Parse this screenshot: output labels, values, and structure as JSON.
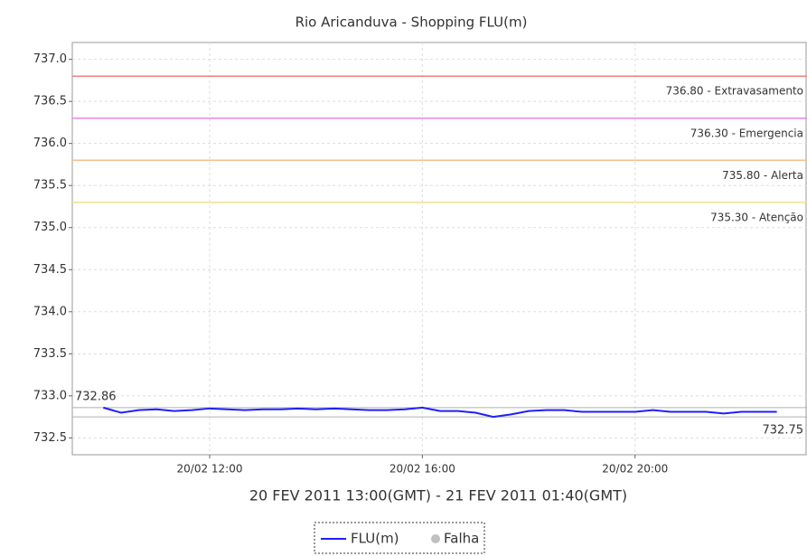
{
  "chart_data": {
    "type": "line",
    "title": "Rio Aricanduva - Shopping FLU(m)",
    "x_label": "20 FEV 2011 13:00(GMT) - 21 FEV 2011 01:40(GMT)",
    "x": [
      "20/02 10:00",
      "20/02 10:20",
      "20/02 10:40",
      "20/02 11:00",
      "20/02 11:20",
      "20/02 11:40",
      "20/02 12:00",
      "20/02 12:20",
      "20/02 12:40",
      "20/02 13:00",
      "20/02 13:20",
      "20/02 13:40",
      "20/02 14:00",
      "20/02 14:20",
      "20/02 14:40",
      "20/02 15:00",
      "20/02 15:20",
      "20/02 15:40",
      "20/02 16:00",
      "20/02 16:20",
      "20/02 16:40",
      "20/02 17:00",
      "20/02 17:20",
      "20/02 17:40",
      "20/02 18:00",
      "20/02 18:20",
      "20/02 18:40",
      "20/02 19:00",
      "20/02 19:20",
      "20/02 19:40",
      "20/02 20:00",
      "20/02 20:20",
      "20/02 20:40",
      "20/02 21:00",
      "20/02 21:20",
      "20/02 21:40",
      "20/02 22:00",
      "20/02 22:20",
      "20/02 22:40"
    ],
    "series": [
      {
        "name": "FLU(m)",
        "color": "#1f1fff",
        "values": [
          732.86,
          732.8,
          732.83,
          732.84,
          732.82,
          732.83,
          732.85,
          732.84,
          732.83,
          732.84,
          732.84,
          732.85,
          732.84,
          732.85,
          732.84,
          732.83,
          732.83,
          732.84,
          732.86,
          732.82,
          732.82,
          732.8,
          732.75,
          732.78,
          732.82,
          732.83,
          732.83,
          732.81,
          732.81,
          732.81,
          732.81,
          732.83,
          732.81,
          732.81,
          732.81,
          732.79,
          732.81,
          732.81,
          732.81
        ]
      },
      {
        "name": "Falha",
        "color": "#c0c0c0",
        "values": [
          null,
          null,
          null,
          null,
          null,
          null,
          null,
          null,
          null,
          null,
          null,
          null,
          null,
          null,
          null,
          null,
          null,
          null,
          null,
          null,
          null,
          null,
          null,
          null,
          null,
          null,
          null,
          null,
          null,
          null,
          null,
          null,
          null,
          null,
          null,
          null,
          null,
          null,
          null
        ]
      }
    ],
    "xlim": [
      "20/02 09:25",
      "20/02 23:14"
    ],
    "xticks": [
      "20/02 12:00",
      "20/02 16:00",
      "20/02 20:00"
    ],
    "ylim": [
      732.3,
      737.2
    ],
    "yticks": [
      {
        "value": 732.5,
        "label": "732.5"
      },
      {
        "value": 733,
        "label": "733.0"
      },
      {
        "value": 733.5,
        "label": "733.5"
      },
      {
        "value": 734,
        "label": "734.0"
      },
      {
        "value": 734.5,
        "label": "734.5"
      },
      {
        "value": 735,
        "label": "735.0"
      },
      {
        "value": 735.5,
        "label": "735.5"
      },
      {
        "value": 736,
        "label": "736.0"
      },
      {
        "value": 736.5,
        "label": "736.5"
      },
      {
        "value": 737,
        "label": "737.0"
      }
    ],
    "grid": true,
    "thresholds": [
      {
        "value": 736.8,
        "label": "736.80 - Extravasamento",
        "color": "#f08080"
      },
      {
        "value": 736.3,
        "label": "736.30 - Emergencia",
        "color": "#ee82ee"
      },
      {
        "value": 735.8,
        "label": "735.80 - Alerta",
        "color": "#f4c28c"
      },
      {
        "value": 735.3,
        "label": "735.30 - Atenção",
        "color": "#f0e08a"
      }
    ],
    "max_marker": {
      "value": 732.86,
      "label": "732.86",
      "color": "#b0b0b0"
    },
    "min_marker": {
      "value": 732.75,
      "label": "732.75",
      "color": "#b0b0b0"
    }
  }
}
